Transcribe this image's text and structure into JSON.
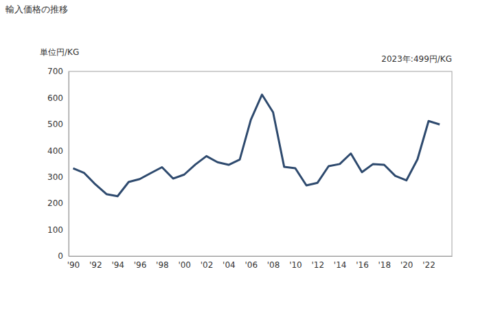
{
  "chart_data": {
    "type": "line",
    "title": "輸入価格の推移",
    "y_label": "単位円/KG",
    "annotation": "2023年:499円/KG",
    "x": [
      1990,
      1991,
      1992,
      1993,
      1994,
      1995,
      1996,
      1997,
      1998,
      1999,
      2000,
      2001,
      2002,
      2003,
      2004,
      2005,
      2006,
      2007,
      2008,
      2009,
      2010,
      2011,
      2012,
      2013,
      2014,
      2015,
      2016,
      2017,
      2018,
      2019,
      2020,
      2021,
      2022,
      2023
    ],
    "values": [
      333,
      315,
      272,
      235,
      227,
      281,
      292,
      315,
      337,
      294,
      309,
      347,
      379,
      356,
      346,
      366,
      517,
      612,
      545,
      338,
      333,
      268,
      278,
      341,
      349,
      389,
      318,
      349,
      346,
      304,
      287,
      367,
      512,
      499
    ],
    "color": "#2e4a6e",
    "xlim": [
      1989.6,
      2024.1
    ],
    "xticks": [
      {
        "value": 1990,
        "label": "'90"
      },
      {
        "value": 1992,
        "label": "'92"
      },
      {
        "value": 1994,
        "label": "'94"
      },
      {
        "value": 1996,
        "label": "'96"
      },
      {
        "value": 1998,
        "label": "'98"
      },
      {
        "value": 2000,
        "label": "'00"
      },
      {
        "value": 2002,
        "label": "'02"
      },
      {
        "value": 2004,
        "label": "'04"
      },
      {
        "value": 2006,
        "label": "'06"
      },
      {
        "value": 2008,
        "label": "'08"
      },
      {
        "value": 2010,
        "label": "'10"
      },
      {
        "value": 2012,
        "label": "'12"
      },
      {
        "value": 2014,
        "label": "'14"
      },
      {
        "value": 2016,
        "label": "'16"
      },
      {
        "value": 2018,
        "label": "'18"
      },
      {
        "value": 2020,
        "label": "'20"
      },
      {
        "value": 2022,
        "label": "'22"
      }
    ],
    "ylim": [
      0,
      700
    ],
    "yticks": [
      0,
      100,
      200,
      300,
      400,
      500,
      600,
      700
    ],
    "grid": false
  }
}
